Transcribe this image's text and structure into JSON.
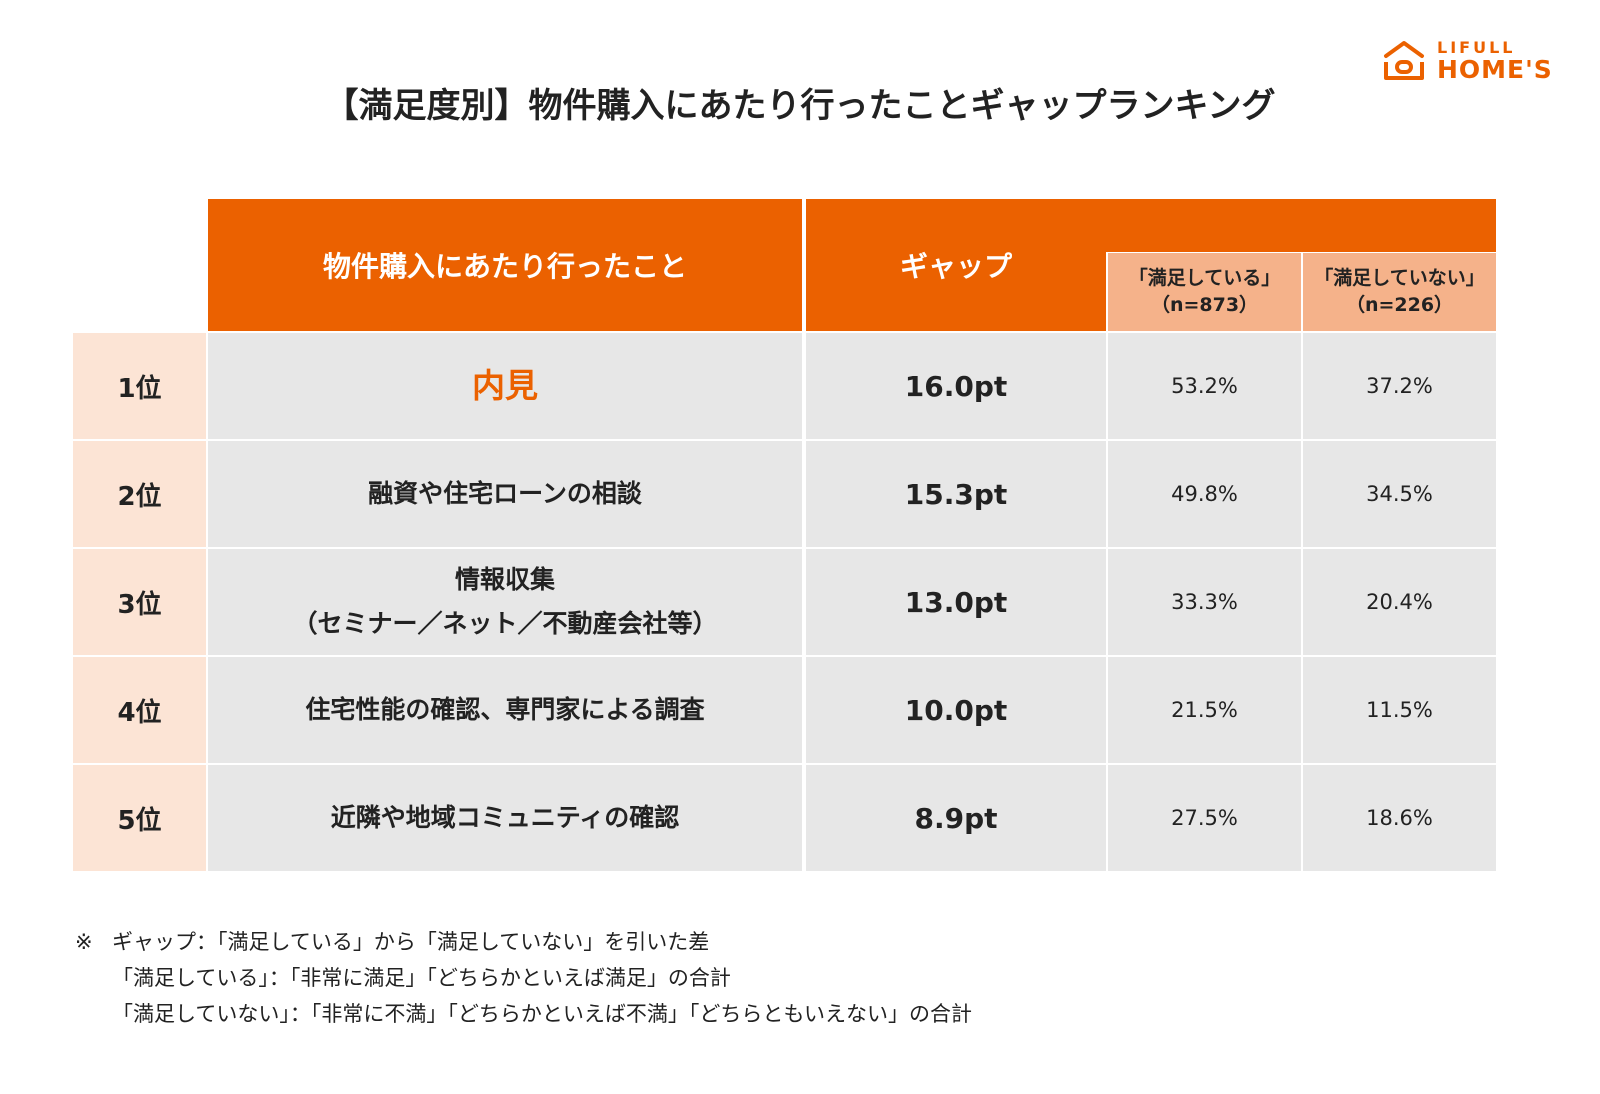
{
  "logo": {
    "top": "LIFULL",
    "bottom": "HOME'S"
  },
  "chart_data": {
    "type": "table",
    "title": "【満足度別】物件購入にあたり行ったことギャップランキング",
    "columns": {
      "item": "物件購入にあたり行ったこと",
      "gap": "ギャップ",
      "satisfied": {
        "label": "「満足している」",
        "n": "（n=873）"
      },
      "unsatisfied": {
        "label": "「満足していない」",
        "n": "（n=226）"
      }
    },
    "rows": [
      {
        "rank": "1位",
        "item": [
          "内見"
        ],
        "gap": "16.0pt",
        "satisfied": "53.2%",
        "unsatisfied": "37.2%"
      },
      {
        "rank": "2位",
        "item": [
          "融資や住宅ローンの相談"
        ],
        "gap": "15.3pt",
        "satisfied": "49.8%",
        "unsatisfied": "34.5%"
      },
      {
        "rank": "3位",
        "item": [
          "情報収集",
          "（セミナー／ネット／不動産会社等）"
        ],
        "gap": "13.0pt",
        "satisfied": "33.3%",
        "unsatisfied": "20.4%"
      },
      {
        "rank": "4位",
        "item": [
          "住宅性能の確認、専門家による調査"
        ],
        "gap": "10.0pt",
        "satisfied": "21.5%",
        "unsatisfied": "11.5%"
      },
      {
        "rank": "5位",
        "item": [
          "近隣や地域コミュニティの確認"
        ],
        "gap": "8.9pt",
        "satisfied": "27.5%",
        "unsatisfied": "18.6%"
      }
    ],
    "highlight_color": "#EB6100"
  },
  "notes": {
    "mark": "※",
    "lines": [
      "ギャップ：「満足している」から「満足していない」を引いた差",
      "「満足している」：「非常に満足」「どちらかといえば満足」の合計",
      "「満足していない」：「非常に不満」「どちらかといえば不満」「どちらともいえない」の合計"
    ]
  },
  "colors": {
    "header": "#EB6100",
    "subheader": "#F5B28A",
    "rank_bg": "#FCE4D5",
    "body_bg": "#E7E7E7"
  }
}
